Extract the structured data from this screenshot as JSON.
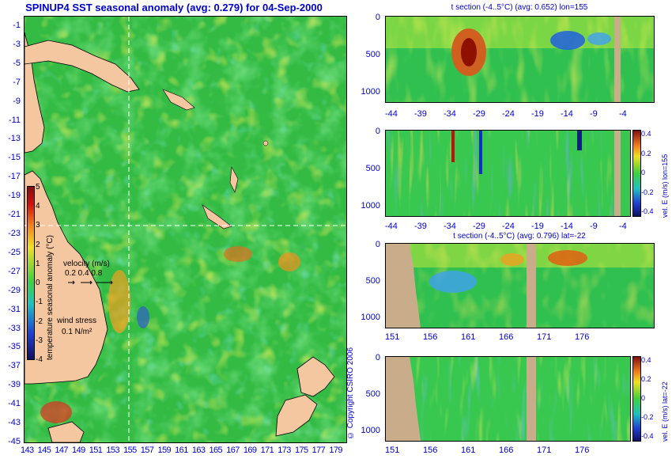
{
  "map": {
    "title": "SPINUP4 SST seasonal anomaly (avg: 0.279) for 04-Sep-2000",
    "lat_ticks": [
      "-1",
      "-3",
      "-5",
      "-7",
      "-9",
      "-11",
      "-13",
      "-15",
      "-17",
      "-19",
      "-21",
      "-23",
      "-25",
      "-27",
      "-29",
      "-31",
      "-33",
      "-35",
      "-37",
      "-39",
      "-41",
      "-43",
      "-45"
    ],
    "lon_ticks": [
      "143",
      "145",
      "147",
      "149",
      "151",
      "153",
      "155",
      "157",
      "159",
      "161",
      "163",
      "165",
      "167",
      "169",
      "171",
      "173",
      "175",
      "177",
      "179"
    ],
    "crosshair": {
      "lon": 155,
      "lat": -22
    },
    "colorbar": {
      "label": "temperature seasonal anomaly (°C)",
      "ticks": [
        "5",
        "4",
        "3",
        "2",
        "1",
        "0",
        "-1",
        "-2",
        "-3",
        "-4"
      ],
      "range": [
        -4,
        5
      ]
    },
    "velocity_legend": {
      "label": "velocity (m/s)",
      "scale": "0.2 0.4 0.8"
    },
    "wind_legend": {
      "label": "wind stress",
      "scale": "0.1 N/m²"
    },
    "copyright": "© Copyright CSIRO 2006",
    "land_color": "#f5c7a0",
    "ocean_base_color": "#30c040"
  },
  "sections": [
    {
      "title": "t section (-4..5°C) (avg: 0.652) lon=155",
      "depth_ticks": [
        "0",
        "500",
        "1000"
      ],
      "x_ticks": [
        "-44",
        "-39",
        "-34",
        "-29",
        "-24",
        "-19",
        "-14",
        "-9",
        "-4"
      ],
      "colorbar": null
    },
    {
      "title": "",
      "depth_ticks": [
        "0",
        "500",
        "1000"
      ],
      "x_ticks": [
        "-44",
        "-39",
        "-34",
        "-29",
        "-24",
        "-19",
        "-14",
        "-9",
        "-4"
      ],
      "colorbar": {
        "label": "vel. E (m/s) lon=155",
        "ticks": [
          "0.4",
          "0.2",
          "0",
          "-0.2",
          "-0.4"
        ]
      }
    },
    {
      "title": "t section (-4..5°C) (avg: 0.796) lat=-22",
      "depth_ticks": [
        "0",
        "500",
        "1000"
      ],
      "x_ticks": [
        "151",
        "156",
        "161",
        "166",
        "171",
        "176"
      ],
      "colorbar": null
    },
    {
      "title": "",
      "depth_ticks": [
        "0",
        "500",
        "1000"
      ],
      "x_ticks": [
        "151",
        "156",
        "161",
        "166",
        "171",
        "176"
      ],
      "colorbar": {
        "label": "vel. E (m/s) lat=-22",
        "ticks": [
          "0.4",
          "0.2",
          "0",
          "-0.2",
          "-0.4"
        ]
      }
    }
  ]
}
